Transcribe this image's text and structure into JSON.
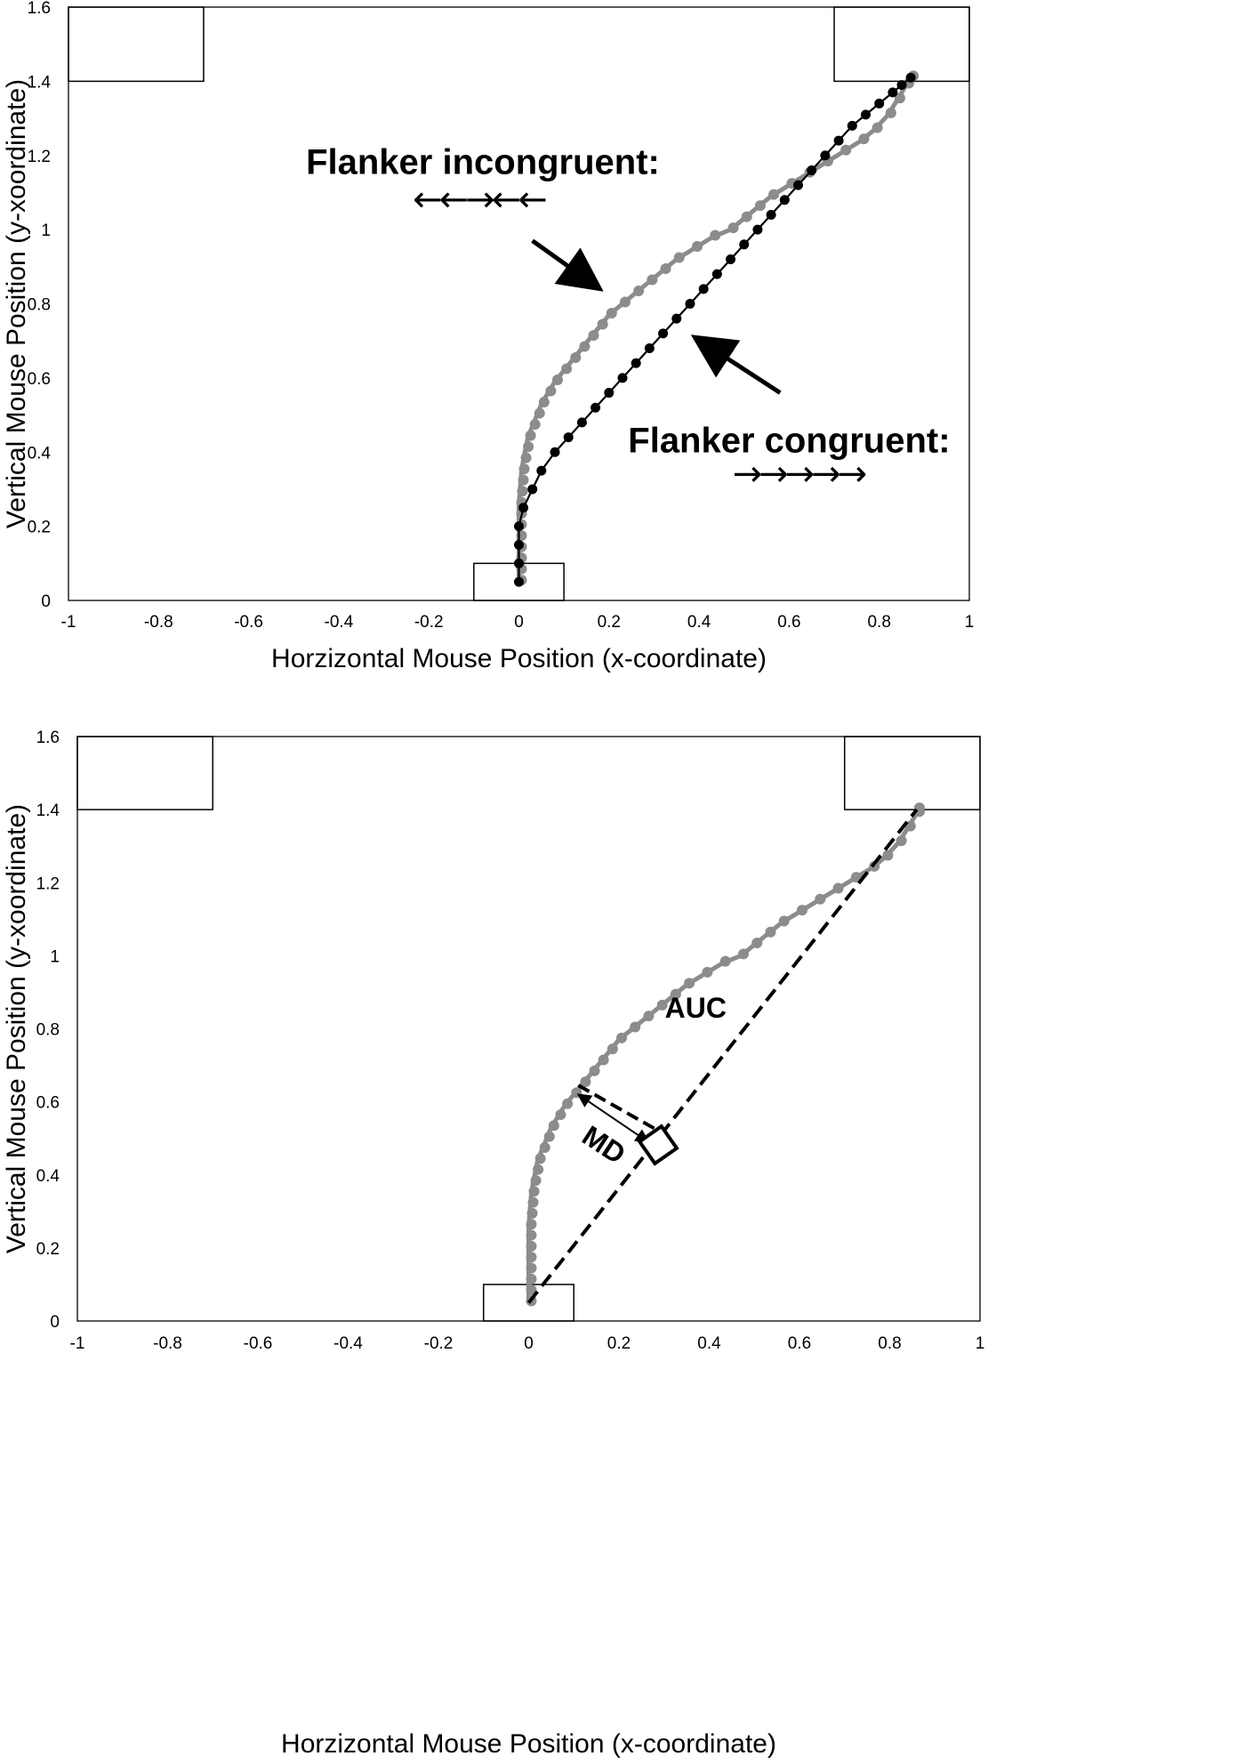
{
  "chart_data": [
    {
      "type": "scatter",
      "xlabel": "Horzizontal Mouse Position (x-coordinate)",
      "ylabel": "Vertical Mouse Position (y-xoordinate)",
      "xlim": [
        -1,
        1
      ],
      "ylim": [
        0,
        1.6
      ],
      "x_ticks": [
        "-1",
        "-0.8",
        "-0.6",
        "-0.4",
        "-0.2",
        "0",
        "0.2",
        "0.4",
        "0.6",
        "0.8",
        "1"
      ],
      "y_ticks": [
        "0",
        "0.2",
        "0.4",
        "0.6",
        "0.8",
        "1",
        "1.2",
        "1.4",
        "1.6"
      ],
      "grid": false,
      "boxes": [
        {
          "x0": -1,
          "y0": 1.4,
          "x1": -0.7,
          "y1": 1.6
        },
        {
          "x0": 0.7,
          "y0": 1.4,
          "x1": 1.0,
          "y1": 1.6
        },
        {
          "x0": -0.1,
          "y0": 0.0,
          "x1": 0.1,
          "y1": 0.1
        }
      ],
      "series": [
        {
          "color": "#8c8c8c",
          "style": "line+dots",
          "points": [
            [
              0.0,
              0.05
            ],
            [
              0.0,
              0.08
            ],
            [
              0.0,
              0.11
            ],
            [
              0.0,
              0.14
            ],
            [
              0.0,
              0.17
            ],
            [
              0.0,
              0.2
            ],
            [
              0.0,
              0.23
            ],
            [
              0.0,
              0.26
            ],
            [
              0.002,
              0.29
            ],
            [
              0.004,
              0.32
            ],
            [
              0.006,
              0.35
            ],
            [
              0.01,
              0.38
            ],
            [
              0.015,
              0.41
            ],
            [
              0.02,
              0.44
            ],
            [
              0.03,
              0.47
            ],
            [
              0.04,
              0.5
            ],
            [
              0.05,
              0.53
            ],
            [
              0.065,
              0.56
            ],
            [
              0.08,
              0.59
            ],
            [
              0.1,
              0.62
            ],
            [
              0.12,
              0.65
            ],
            [
              0.14,
              0.68
            ],
            [
              0.16,
              0.71
            ],
            [
              0.18,
              0.74
            ],
            [
              0.2,
              0.77
            ],
            [
              0.23,
              0.8
            ],
            [
              0.26,
              0.83
            ],
            [
              0.29,
              0.86
            ],
            [
              0.32,
              0.89
            ],
            [
              0.35,
              0.92
            ],
            [
              0.39,
              0.95
            ],
            [
              0.43,
              0.98
            ],
            [
              0.47,
              1.0
            ],
            [
              0.5,
              1.03
            ],
            [
              0.53,
              1.06
            ],
            [
              0.56,
              1.09
            ],
            [
              0.6,
              1.12
            ],
            [
              0.64,
              1.15
            ],
            [
              0.68,
              1.18
            ],
            [
              0.72,
              1.21
            ],
            [
              0.76,
              1.24
            ],
            [
              0.79,
              1.27
            ],
            [
              0.82,
              1.31
            ],
            [
              0.84,
              1.35
            ],
            [
              0.86,
              1.39
            ],
            [
              0.87,
              1.41
            ]
          ]
        },
        {
          "color": "#000000",
          "style": "line+dots",
          "points": [
            [
              0.0,
              0.05
            ],
            [
              0.0,
              0.1
            ],
            [
              0.0,
              0.15
            ],
            [
              0.0,
              0.2
            ],
            [
              0.01,
              0.25
            ],
            [
              0.03,
              0.3
            ],
            [
              0.05,
              0.35
            ],
            [
              0.08,
              0.4
            ],
            [
              0.11,
              0.44
            ],
            [
              0.14,
              0.48
            ],
            [
              0.17,
              0.52
            ],
            [
              0.2,
              0.56
            ],
            [
              0.23,
              0.6
            ],
            [
              0.26,
              0.64
            ],
            [
              0.29,
              0.68
            ],
            [
              0.32,
              0.72
            ],
            [
              0.35,
              0.76
            ],
            [
              0.38,
              0.8
            ],
            [
              0.41,
              0.84
            ],
            [
              0.44,
              0.88
            ],
            [
              0.47,
              0.92
            ],
            [
              0.5,
              0.96
            ],
            [
              0.53,
              1.0
            ],
            [
              0.56,
              1.04
            ],
            [
              0.59,
              1.08
            ],
            [
              0.62,
              1.12
            ],
            [
              0.65,
              1.16
            ],
            [
              0.68,
              1.2
            ],
            [
              0.71,
              1.24
            ],
            [
              0.74,
              1.28
            ],
            [
              0.77,
              1.31
            ],
            [
              0.8,
              1.34
            ],
            [
              0.83,
              1.37
            ],
            [
              0.85,
              1.39
            ],
            [
              0.87,
              1.41
            ]
          ]
        }
      ],
      "annotations": [
        {
          "text": "Flanker incongruent:",
          "x": -0.08,
          "y": 1.15
        },
        {
          "text": "🡠🡠🡢🡠🡠",
          "x": -0.09,
          "y": 1.05
        },
        {
          "text": "Flanker congruent:",
          "x": 0.6,
          "y": 0.4
        },
        {
          "text": "🡢🡢🡢🡢🡢",
          "x": 0.62,
          "y": 0.31
        }
      ],
      "arrows": [
        {
          "from": [
            0.03,
            0.97
          ],
          "to": [
            0.18,
            0.84
          ]
        },
        {
          "from": [
            0.58,
            0.56
          ],
          "to": [
            0.39,
            0.71
          ]
        }
      ]
    },
    {
      "type": "scatter",
      "xlabel": "Horzizontal Mouse Position (x-coordinate)",
      "ylabel": "Vertical Mouse Position (y-xoordinate)",
      "xlim": [
        -1,
        1
      ],
      "ylim": [
        0,
        1.6
      ],
      "x_ticks": [
        "-1",
        "-0.8",
        "-0.6",
        "-0.4",
        "-0.2",
        "0",
        "0.2",
        "0.4",
        "0.6",
        "0.8",
        "1"
      ],
      "y_ticks": [
        "0",
        "0.2",
        "0.4",
        "0.6",
        "0.8",
        "1",
        "1.2",
        "1.4",
        "1.6"
      ],
      "grid": false,
      "boxes": [
        {
          "x0": -1,
          "y0": 1.4,
          "x1": -0.7,
          "y1": 1.6
        },
        {
          "x0": 0.7,
          "y0": 1.4,
          "x1": 1.0,
          "y1": 1.6
        },
        {
          "x0": -0.1,
          "y0": 0.0,
          "x1": 0.1,
          "y1": 0.1
        }
      ],
      "series": [
        {
          "color": "#8c8c8c",
          "style": "line+dots",
          "points": [
            [
              0.0,
              0.05
            ],
            [
              0.0,
              0.08
            ],
            [
              0.0,
              0.11
            ],
            [
              0.0,
              0.14
            ],
            [
              0.0,
              0.17
            ],
            [
              0.0,
              0.2
            ],
            [
              0.0,
              0.23
            ],
            [
              0.0,
              0.26
            ],
            [
              0.002,
              0.29
            ],
            [
              0.004,
              0.32
            ],
            [
              0.006,
              0.35
            ],
            [
              0.01,
              0.38
            ],
            [
              0.015,
              0.41
            ],
            [
              0.02,
              0.44
            ],
            [
              0.03,
              0.47
            ],
            [
              0.04,
              0.5
            ],
            [
              0.05,
              0.53
            ],
            [
              0.065,
              0.56
            ],
            [
              0.08,
              0.59
            ],
            [
              0.1,
              0.62
            ],
            [
              0.12,
              0.65
            ],
            [
              0.14,
              0.68
            ],
            [
              0.16,
              0.71
            ],
            [
              0.18,
              0.74
            ],
            [
              0.2,
              0.77
            ],
            [
              0.23,
              0.8
            ],
            [
              0.26,
              0.83
            ],
            [
              0.29,
              0.86
            ],
            [
              0.32,
              0.89
            ],
            [
              0.35,
              0.92
            ],
            [
              0.39,
              0.95
            ],
            [
              0.43,
              0.98
            ],
            [
              0.47,
              1.0
            ],
            [
              0.5,
              1.03
            ],
            [
              0.53,
              1.06
            ],
            [
              0.56,
              1.09
            ],
            [
              0.6,
              1.12
            ],
            [
              0.64,
              1.15
            ],
            [
              0.68,
              1.18
            ],
            [
              0.72,
              1.21
            ],
            [
              0.76,
              1.24
            ],
            [
              0.79,
              1.27
            ],
            [
              0.82,
              1.31
            ],
            [
              0.84,
              1.35
            ],
            [
              0.86,
              1.39
            ],
            [
              0.86,
              1.4
            ]
          ]
        },
        {
          "color": "#000000",
          "style": "dashed-line",
          "points": [
            [
              0.0,
              0.05
            ],
            [
              0.86,
              1.4
            ]
          ]
        }
      ],
      "annotations": [
        {
          "text": "AUC",
          "x": 0.37,
          "y": 0.83
        },
        {
          "text": "MD",
          "x": 0.155,
          "y": 0.46,
          "rotate": 33
        }
      ],
      "md_segment": {
        "from": [
          0.11,
          0.645
        ],
        "to": [
          0.31,
          0.505
        ]
      },
      "md_double_arrow": {
        "from": [
          0.11,
          0.62
        ],
        "to": [
          0.265,
          0.49
        ]
      },
      "right_angle_at": [
        0.31,
        0.505
      ]
    }
  ]
}
